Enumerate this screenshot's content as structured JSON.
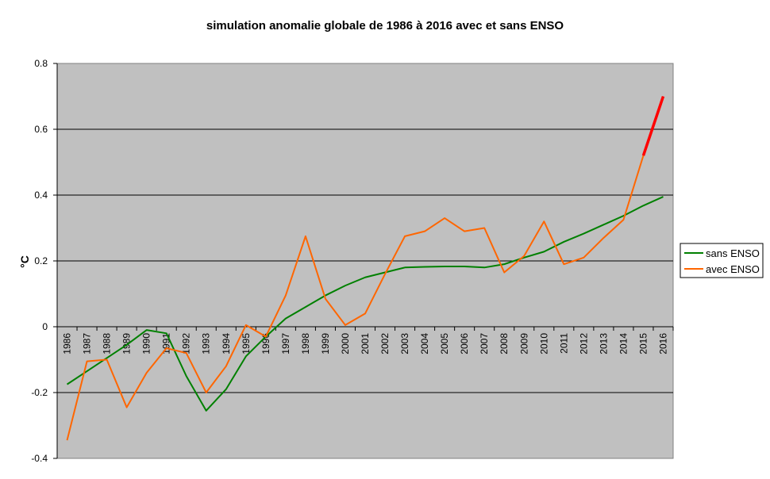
{
  "chart_data": {
    "type": "line",
    "title": "simulation anomalie globale de 1986 à 2016 avec et sans ENSO",
    "xlabel": "",
    "ylabel": "°C",
    "ylim": [
      -0.4,
      0.8
    ],
    "yticks": [
      -0.4,
      -0.2,
      0,
      0.2,
      0.4,
      0.6,
      0.8
    ],
    "ytick_labels": [
      "-0.4",
      "-0.2",
      "0",
      "0.2",
      "0.4",
      "0.6",
      "0.8"
    ],
    "grid": true,
    "legend_position": "right",
    "categories": [
      "1986",
      "1987",
      "1988",
      "1989",
      "1990",
      "1991",
      "1992",
      "1993",
      "1994",
      "1995",
      "1996",
      "1997",
      "1998",
      "1999",
      "2000",
      "2001",
      "2002",
      "2003",
      "2004",
      "2005",
      "2006",
      "2007",
      "2008",
      "2009",
      "2010",
      "2011",
      "2012",
      "2013",
      "2014",
      "2015",
      "2016"
    ],
    "series": [
      {
        "name": "sans ENSO",
        "color": "#008000",
        "values": [
          -0.175,
          -0.135,
          -0.095,
          -0.055,
          -0.01,
          -0.02,
          -0.15,
          -0.255,
          -0.19,
          -0.09,
          -0.03,
          0.025,
          0.06,
          0.095,
          0.125,
          0.15,
          0.165,
          0.18,
          0.182,
          0.183,
          0.183,
          0.18,
          0.19,
          0.21,
          0.228,
          0.258,
          0.283,
          0.31,
          0.337,
          0.368,
          0.395
        ]
      },
      {
        "name": "avec ENSO",
        "color": "#ff6600",
        "highlight_color": "#ff0000",
        "highlight_from": "2015",
        "values": [
          -0.345,
          -0.105,
          -0.1,
          -0.245,
          -0.14,
          -0.065,
          -0.08,
          -0.2,
          -0.12,
          0.005,
          -0.03,
          0.095,
          0.275,
          0.085,
          0.005,
          0.04,
          0.16,
          0.275,
          0.29,
          0.33,
          0.29,
          0.3,
          0.165,
          0.215,
          0.32,
          0.19,
          0.21,
          0.27,
          0.325,
          0.52,
          0.7
        ]
      }
    ]
  }
}
